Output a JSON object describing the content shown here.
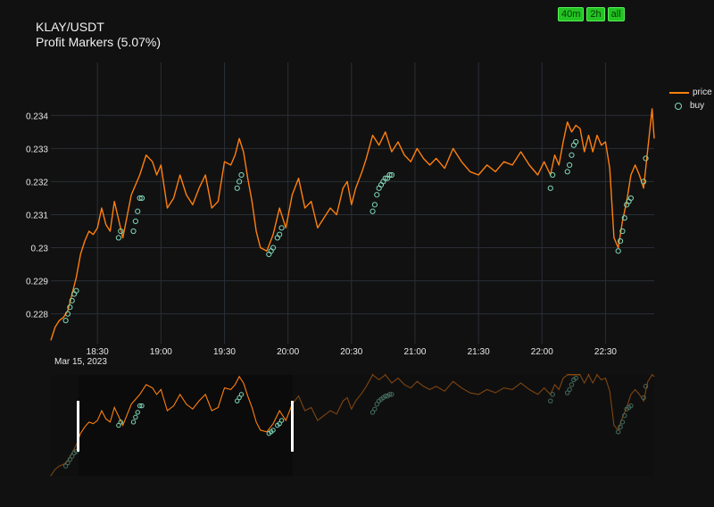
{
  "header": {
    "title": "KLAY/USDT",
    "subtitle": "Profit Markers (5.07%)"
  },
  "range_buttons": [
    "40m",
    "2h",
    "all"
  ],
  "legend": {
    "price_label": "price",
    "buy_label": "buy"
  },
  "colors": {
    "price": "#ff7f0e",
    "buy": "#7fd8b8",
    "grid": "#2a2f36",
    "button": "#22c322"
  },
  "chart_data": {
    "type": "line",
    "title": "KLAY/USDT",
    "subtitle": "Profit Markers (5.07%)",
    "x_start": "2023-03-15 18:08",
    "x_end": "2023-03-15 22:53",
    "ylim": [
      0.2271,
      0.2356
    ],
    "x_ticks": [
      "18:30",
      "19:00",
      "19:30",
      "20:00",
      "20:30",
      "21:00",
      "21:30",
      "22:00",
      "22:30"
    ],
    "x_tick_minutes": [
      22,
      52,
      82,
      112,
      142,
      172,
      202,
      232,
      262
    ],
    "x_date_label": "Mar 15, 2023",
    "y_ticks": [
      "0.228",
      "0.229",
      "0.23",
      "0.231",
      "0.232",
      "0.233",
      "0.234"
    ],
    "y_tick_values": [
      0.228,
      0.229,
      0.23,
      0.231,
      0.232,
      0.233,
      0.234
    ],
    "legend_position": "top-right",
    "grid": true,
    "series": [
      {
        "name": "price",
        "x": [
          "18:08",
          "18:10",
          "18:12",
          "18:14",
          "18:16",
          "18:18",
          "18:20",
          "18:22",
          "18:24",
          "18:26",
          "18:28",
          "18:30",
          "18:32",
          "18:34",
          "18:36",
          "18:38",
          "18:42",
          "18:46",
          "18:50",
          "18:53",
          "18:56",
          "18:58",
          "19:00",
          "19:03",
          "19:06",
          "19:09",
          "19:12",
          "19:15",
          "19:18",
          "19:21",
          "19:24",
          "19:27",
          "19:30",
          "19:33",
          "19:35",
          "19:37",
          "19:39",
          "19:41",
          "19:43",
          "19:45",
          "19:47",
          "19:50",
          "19:53",
          "19:56",
          "19:59",
          "20:02",
          "20:05",
          "20:08",
          "20:11",
          "20:14",
          "20:17",
          "20:20",
          "20:23",
          "20:26",
          "20:28",
          "20:30",
          "20:32",
          "20:35",
          "20:37",
          "20:40",
          "20:43",
          "20:46",
          "20:49",
          "20:52",
          "20:55",
          "20:58",
          "21:01",
          "21:04",
          "21:07",
          "21:10",
          "21:14",
          "21:18",
          "21:22",
          "21:26",
          "21:30",
          "21:34",
          "21:38",
          "21:42",
          "21:46",
          "21:50",
          "21:54",
          "21:58",
          "22:01",
          "22:04",
          "22:06",
          "22:08",
          "22:10",
          "22:12",
          "22:14",
          "22:16",
          "22:18",
          "22:20",
          "22:22",
          "22:24",
          "22:26",
          "22:28",
          "22:30",
          "22:32",
          "22:34",
          "22:36",
          "22:38",
          "22:40",
          "22:42",
          "22:44",
          "22:46",
          "22:48",
          "22:50",
          "22:52",
          "22:53"
        ],
        "y": [
          0.2272,
          0.2276,
          0.2278,
          0.2279,
          0.2281,
          0.2286,
          0.2291,
          0.2298,
          0.2302,
          0.2305,
          0.2304,
          0.2306,
          0.2312,
          0.2307,
          0.2305,
          0.2314,
          0.2303,
          0.2316,
          0.2322,
          0.2328,
          0.2326,
          0.2322,
          0.2325,
          0.2312,
          0.2315,
          0.2322,
          0.2316,
          0.2313,
          0.2318,
          0.2322,
          0.2312,
          0.2314,
          0.2326,
          0.2325,
          0.2328,
          0.2333,
          0.2329,
          0.2321,
          0.2314,
          0.2305,
          0.23,
          0.2299,
          0.2304,
          0.2312,
          0.2306,
          0.2316,
          0.2321,
          0.2312,
          0.2314,
          0.2306,
          0.2309,
          0.2312,
          0.231,
          0.2318,
          0.232,
          0.2313,
          0.2318,
          0.2323,
          0.2327,
          0.2334,
          0.2331,
          0.2335,
          0.2329,
          0.2332,
          0.2328,
          0.2326,
          0.233,
          0.2327,
          0.2325,
          0.2327,
          0.2324,
          0.233,
          0.2326,
          0.2323,
          0.2322,
          0.2325,
          0.2323,
          0.2326,
          0.2325,
          0.2329,
          0.2325,
          0.2322,
          0.2326,
          0.2322,
          0.2328,
          0.2325,
          0.2332,
          0.2338,
          0.2335,
          0.2337,
          0.2336,
          0.2329,
          0.2334,
          0.2329,
          0.2334,
          0.2331,
          0.2332,
          0.2324,
          0.2303,
          0.23,
          0.2308,
          0.2314,
          0.2322,
          0.2325,
          0.2322,
          0.2318,
          0.233,
          0.2342,
          0.2333
        ]
      },
      {
        "name": "buy",
        "mode": "markers",
        "x": [
          "18:15",
          "18:16",
          "18:17",
          "18:18",
          "18:19",
          "18:20",
          "18:40",
          "18:41",
          "18:47",
          "18:48",
          "18:49",
          "18:50",
          "18:51",
          "19:36",
          "19:37",
          "19:38",
          "19:51",
          "19:52",
          "19:53",
          "19:55",
          "19:56",
          "19:57",
          "20:40",
          "20:41",
          "20:42",
          "20:43",
          "20:44",
          "20:45",
          "20:46",
          "20:47",
          "20:48",
          "20:49",
          "22:04",
          "22:05",
          "22:12",
          "22:13",
          "22:14",
          "22:15",
          "22:16",
          "22:36",
          "22:37",
          "22:38",
          "22:39",
          "22:40",
          "22:41",
          "22:42",
          "22:48",
          "22:49"
        ],
        "y": [
          0.2278,
          0.228,
          0.2282,
          0.2284,
          0.2286,
          0.2287,
          0.2303,
          0.2305,
          0.2305,
          0.2308,
          0.2311,
          0.2315,
          0.2315,
          0.2318,
          0.232,
          0.2322,
          0.2298,
          0.2299,
          0.23,
          0.2303,
          0.2304,
          0.2306,
          0.2311,
          0.2313,
          0.2316,
          0.2318,
          0.2319,
          0.232,
          0.2321,
          0.2321,
          0.2322,
          0.2322,
          0.2318,
          0.2322,
          0.2323,
          0.2325,
          0.2328,
          0.2331,
          0.2332,
          0.2299,
          0.2302,
          0.2305,
          0.2309,
          0.2313,
          0.2314,
          0.2315,
          0.232,
          0.2327
        ]
      }
    ]
  }
}
